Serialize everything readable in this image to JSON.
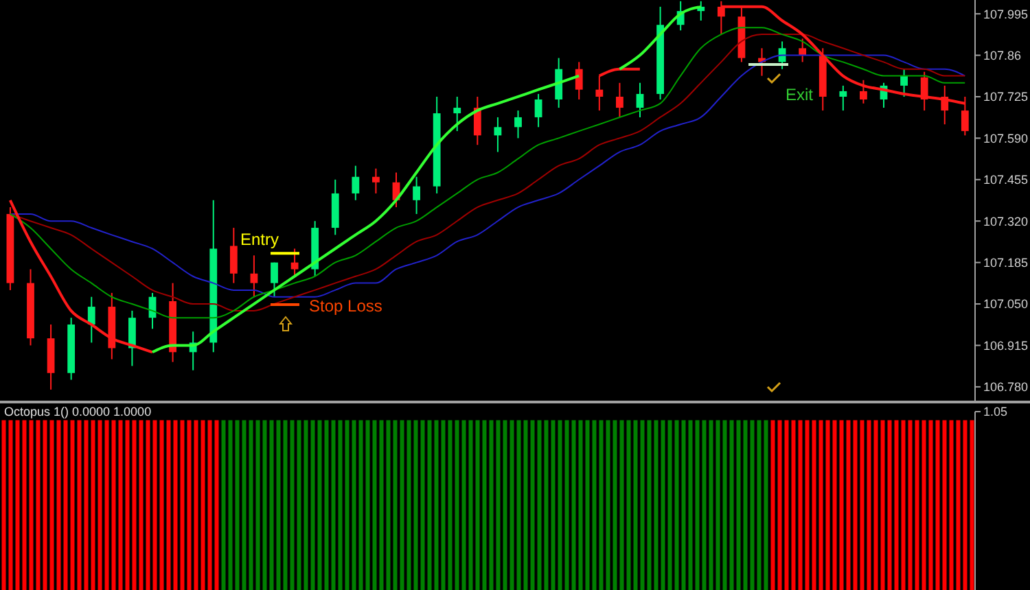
{
  "chart_data": [
    {
      "type": "candlestick",
      "categories": [
        null,
        null,
        null,
        null,
        null,
        null,
        null,
        null,
        null,
        null,
        null,
        null,
        null,
        null,
        null,
        null,
        null,
        null,
        null,
        null,
        null,
        null,
        null,
        null,
        null,
        null,
        null,
        null,
        null,
        null,
        null,
        null,
        null,
        null,
        null,
        null,
        null,
        null,
        null,
        null,
        null,
        null,
        null,
        null,
        null,
        null,
        null,
        null
      ],
      "ohlc": [
        [
          107.343,
          107.365,
          107.095,
          107.118
        ],
        [
          107.118,
          107.163,
          106.915,
          106.938
        ],
        [
          106.938,
          106.983,
          106.771,
          106.825
        ],
        [
          106.825,
          107.005,
          106.803,
          106.983
        ],
        [
          106.983,
          107.073,
          106.924,
          107.041
        ],
        [
          107.041,
          107.086,
          106.87,
          106.906
        ],
        [
          106.906,
          107.028,
          106.848,
          107.005
        ],
        [
          107.005,
          107.086,
          106.969,
          107.073
        ],
        [
          107.059,
          107.118,
          106.861,
          106.893
        ],
        [
          106.893,
          106.96,
          106.834,
          106.924
        ],
        [
          106.924,
          107.388,
          106.893,
          107.23
        ],
        [
          107.239,
          107.298,
          107.118,
          107.149
        ],
        [
          107.149,
          107.208,
          107.073,
          107.118
        ],
        [
          107.118,
          107.185,
          107.073,
          107.185
        ],
        [
          107.185,
          107.23,
          107.14,
          107.163
        ],
        [
          107.163,
          107.32,
          107.14,
          107.298
        ],
        [
          107.298,
          107.455,
          107.275,
          107.41
        ],
        [
          107.41,
          107.5,
          107.388,
          107.464
        ],
        [
          107.464,
          107.491,
          107.41,
          107.446
        ],
        [
          107.446,
          107.478,
          107.365,
          107.388
        ],
        [
          107.388,
          107.464,
          107.343,
          107.433
        ],
        [
          107.433,
          107.725,
          107.41,
          107.671
        ],
        [
          107.671,
          107.725,
          107.613,
          107.689
        ],
        [
          107.689,
          107.725,
          107.568,
          107.599
        ],
        [
          107.599,
          107.658,
          107.545,
          107.626
        ],
        [
          107.626,
          107.68,
          107.59,
          107.658
        ],
        [
          107.658,
          107.734,
          107.626,
          107.716
        ],
        [
          107.716,
          107.851,
          107.689,
          107.815
        ],
        [
          107.815,
          107.838,
          107.716,
          107.748
        ],
        [
          107.748,
          107.793,
          107.68,
          107.725
        ],
        [
          107.725,
          107.77,
          107.658,
          107.689
        ],
        [
          107.689,
          107.77,
          107.658,
          107.734
        ],
        [
          107.734,
          108.018,
          107.716,
          107.959
        ],
        [
          107.959,
          108.036,
          107.941,
          108.004
        ],
        [
          108.004,
          108.036,
          107.973,
          108.018
        ],
        [
          108.018,
          108.036,
          107.928,
          107.986
        ],
        [
          107.986,
          108.018,
          107.838,
          107.851
        ],
        [
          107.851,
          107.883,
          107.793,
          107.838
        ],
        [
          107.838,
          107.905,
          107.815,
          107.883
        ],
        [
          107.883,
          107.914,
          107.838,
          107.86
        ],
        [
          107.86,
          107.883,
          107.68,
          107.725
        ],
        [
          107.725,
          107.761,
          107.68,
          107.743
        ],
        [
          107.743,
          107.779,
          107.703,
          107.716
        ],
        [
          107.716,
          107.77,
          107.689,
          107.761
        ],
        [
          107.761,
          107.815,
          107.725,
          107.793
        ],
        [
          107.788,
          107.806,
          107.68,
          107.716
        ],
        [
          107.725,
          107.761,
          107.635,
          107.68
        ],
        [
          107.68,
          107.725,
          107.599,
          107.613
        ]
      ],
      "series": [
        {
          "type": "line",
          "color": "#2222cc",
          "values": [
            107.343,
            107.343,
            107.32,
            107.32,
            107.298,
            107.275,
            107.253,
            107.23,
            107.185,
            107.14,
            107.118,
            107.095,
            107.095,
            107.073,
            107.073,
            107.073,
            107.095,
            107.118,
            107.118,
            107.163,
            107.185,
            107.208,
            107.253,
            107.275,
            107.32,
            107.365,
            107.388,
            107.41,
            107.455,
            107.5,
            107.545,
            107.568,
            107.613,
            107.635,
            107.658,
            107.725,
            107.793,
            107.838,
            107.86,
            107.86,
            107.86,
            107.86,
            107.86,
            107.86,
            107.838,
            107.815,
            107.815,
            107.793
          ]
        },
        {
          "type": "line",
          "color": "#a00000",
          "values": [
            107.343,
            107.32,
            107.298,
            107.275,
            107.23,
            107.185,
            107.14,
            107.095,
            107.073,
            107.05,
            107.05,
            107.028,
            107.028,
            107.05,
            107.073,
            107.095,
            107.118,
            107.14,
            107.163,
            107.208,
            107.253,
            107.275,
            107.32,
            107.365,
            107.388,
            107.41,
            107.455,
            107.5,
            107.523,
            107.568,
            107.59,
            107.613,
            107.658,
            107.703,
            107.77,
            107.838,
            107.905,
            107.928,
            107.928,
            107.928,
            107.905,
            107.883,
            107.86,
            107.838,
            107.815,
            107.815,
            107.793,
            107.793
          ]
        },
        {
          "type": "line",
          "color": "#00a000",
          "values": [
            107.343,
            107.298,
            107.23,
            107.163,
            107.118,
            107.073,
            107.05,
            107.028,
            107.005,
            107.005,
            107.005,
            107.028,
            107.073,
            107.095,
            107.118,
            107.14,
            107.185,
            107.208,
            107.253,
            107.298,
            107.32,
            107.365,
            107.41,
            107.455,
            107.478,
            107.523,
            107.568,
            107.59,
            107.613,
            107.635,
            107.658,
            107.68,
            107.703,
            107.793,
            107.883,
            107.928,
            107.95,
            107.95,
            107.928,
            107.905,
            107.86,
            107.838,
            107.815,
            107.793,
            107.793,
            107.793,
            107.77,
            107.77
          ]
        },
        {
          "type": "line",
          "color": "#ff1a1a",
          "values": [
            107.388,
            107.253,
            107.14,
            107.028,
            106.983,
            106.938,
            106.915,
            106.893,
            null,
            null,
            null,
            null,
            null,
            null,
            null,
            null,
            null,
            null,
            null,
            null,
            null,
            null,
            null,
            null,
            null,
            null,
            null,
            null,
            null,
            107.793,
            107.815,
            107.815,
            null,
            null,
            null,
            108.018,
            108.018,
            108.018,
            107.973,
            107.928,
            107.86,
            107.793,
            107.761,
            107.748,
            107.734,
            107.725,
            107.716,
            107.703
          ]
        },
        {
          "type": "line",
          "color": "#33ff33",
          "values": [
            null,
            null,
            null,
            null,
            null,
            null,
            null,
            106.893,
            106.915,
            106.915,
            106.96,
            107.005,
            107.05,
            107.095,
            107.14,
            107.185,
            107.23,
            107.275,
            107.32,
            107.388,
            107.478,
            107.568,
            107.635,
            107.68,
            107.703,
            107.725,
            107.748,
            107.77,
            107.793,
            null,
            107.815,
            107.86,
            107.928,
            107.995,
            108.018,
            null,
            null,
            null,
            null,
            null,
            null,
            null,
            null,
            null,
            null,
            null,
            null,
            null
          ]
        }
      ],
      "ylim": [
        106.735,
        108.04
      ],
      "yticks": [
        {
          "value": 106.78,
          "label": "106.780"
        },
        106.915,
        {
          "value": 107.05,
          "label": "107.050"
        },
        107.185,
        {
          "value": 107.32,
          "label": "107.320"
        },
        107.455,
        {
          "value": 107.59,
          "label": "107.590"
        },
        107.725,
        107.86,
        107.995
      ],
      "annotations": [
        {
          "text": "Entry",
          "y": 107.215
        },
        "Stop Loss",
        {
          "text": "Exit",
          "y": 107.83
        }
      ],
      "tick_labels": "y"
    },
    {
      "type": "bar",
      "title": "Octopus 1() 0.0000 1.0000",
      "categories": [
        null,
        null,
        null,
        null,
        null,
        null,
        null,
        null,
        null,
        null,
        null,
        null,
        null,
        null,
        null,
        null,
        null,
        null,
        null,
        null,
        null,
        null,
        null,
        null,
        null,
        null,
        null,
        null,
        null,
        null,
        null,
        null,
        null,
        null,
        null,
        null,
        null,
        null,
        null,
        null,
        null,
        null,
        null,
        null,
        null,
        null,
        null,
        null,
        null,
        null,
        null,
        null,
        null,
        null,
        null,
        null,
        null,
        null,
        null,
        null,
        null,
        null,
        null,
        null,
        null,
        null,
        null,
        null,
        null,
        null,
        null,
        null,
        null,
        null,
        null,
        null,
        null,
        null,
        null,
        null,
        null,
        null,
        null,
        null,
        null,
        null,
        null,
        null,
        null,
        null,
        null,
        null,
        null,
        null,
        null,
        null,
        null,
        null,
        null,
        null,
        null,
        null,
        null,
        null,
        null,
        null,
        null,
        null,
        null,
        null,
        null,
        null,
        null,
        null,
        null,
        null,
        null,
        null,
        null,
        null,
        null,
        null,
        null,
        null,
        null,
        null,
        null,
        null,
        null,
        null,
        null,
        null,
        null,
        null,
        null,
        null,
        null,
        null,
        null,
        null,
        null,
        null
      ],
      "values": [
        1,
        1,
        1,
        1,
        1,
        1,
        1,
        1,
        1,
        1,
        1,
        1,
        1,
        1,
        1,
        1,
        1,
        1,
        1,
        1,
        1,
        1,
        1,
        1,
        1,
        1,
        1,
        1,
        1,
        1,
        1,
        1,
        1,
        1,
        1,
        1,
        1,
        1,
        1,
        1,
        1,
        1,
        1,
        1,
        1,
        1,
        1,
        1,
        1,
        1,
        1,
        1,
        1,
        1,
        1,
        1,
        1,
        1,
        1,
        1,
        1,
        1,
        1,
        1,
        1,
        1,
        1,
        1,
        1,
        1,
        1,
        1,
        1,
        1,
        1,
        1,
        1,
        1,
        1,
        1,
        1,
        1,
        1,
        1,
        1,
        1,
        1,
        1,
        1,
        1,
        1,
        1,
        1,
        1,
        1,
        1,
        1,
        1,
        1,
        1,
        1,
        1,
        1,
        1,
        1,
        1,
        1,
        1,
        1,
        1,
        1,
        1,
        1,
        1,
        1,
        1,
        1,
        1,
        1,
        1,
        1,
        1,
        1,
        1,
        1,
        1,
        1,
        1,
        1,
        1,
        1,
        1,
        1,
        1,
        1,
        1,
        1,
        1,
        1,
        1,
        1,
        1
      ],
      "colors": [
        "#ff0000",
        "#ff0000",
        "#ff0000",
        "#ff0000",
        "#ff0000",
        "#ff0000",
        "#ff0000",
        "#ff0000",
        "#ff0000",
        "#ff0000",
        "#ff0000",
        "#ff0000",
        "#ff0000",
        "#ff0000",
        "#ff0000",
        "#ff0000",
        "#ff0000",
        "#ff0000",
        "#ff0000",
        "#ff0000",
        "#ff0000",
        "#ff0000",
        "#ff0000",
        "#ff0000",
        "#ff0000",
        "#ff0000",
        "#ff0000",
        "#ff0000",
        "#ff0000",
        "#ff0000",
        "#ff0000",
        "#ff0000",
        "#008000",
        "#008000",
        "#008000",
        "#008000",
        "#008000",
        "#008000",
        "#008000",
        "#008000",
        "#008000",
        "#008000",
        "#008000",
        "#008000",
        "#008000",
        "#008000",
        "#008000",
        "#008000",
        "#008000",
        "#008000",
        "#008000",
        "#008000",
        "#008000",
        "#008000",
        "#008000",
        "#008000",
        "#008000",
        "#008000",
        "#008000",
        "#008000",
        "#008000",
        "#008000",
        "#008000",
        "#008000",
        "#008000",
        "#008000",
        "#008000",
        "#008000",
        "#008000",
        "#008000",
        "#008000",
        "#008000",
        "#008000",
        "#008000",
        "#008000",
        "#008000",
        "#008000",
        "#008000",
        "#008000",
        "#008000",
        "#008000",
        "#008000",
        "#008000",
        "#008000",
        "#008000",
        "#008000",
        "#008000",
        "#008000",
        "#008000",
        "#008000",
        "#008000",
        "#008000",
        "#008000",
        "#008000",
        "#008000",
        "#008000",
        "#008000",
        "#008000",
        "#008000",
        "#008000",
        "#008000",
        "#008000",
        "#008000",
        "#008000",
        "#008000",
        "#008000",
        "#008000",
        "#008000",
        "#008000",
        "#008000",
        "#008000",
        "#008000",
        "#ff0000",
        "#ff0000",
        "#ff0000",
        "#ff0000",
        "#ff0000",
        "#ff0000",
        "#ff0000",
        "#ff0000",
        "#ff0000",
        "#ff0000",
        "#ff0000",
        "#ff0000",
        "#ff0000",
        "#ff0000",
        "#ff0000",
        "#ff0000",
        "#ff0000",
        "#ff0000",
        "#ff0000",
        "#ff0000",
        "#ff0000",
        "#ff0000",
        "#ff0000",
        "#ff0000",
        "#ff0000",
        "#ff0000",
        "#ff0000",
        "#ff0000",
        "#ff0000",
        "#ff0000"
      ],
      "ylim": [
        0,
        1.05
      ],
      "yticks": [
        1.05
      ],
      "tick_labels": "y"
    }
  ]
}
